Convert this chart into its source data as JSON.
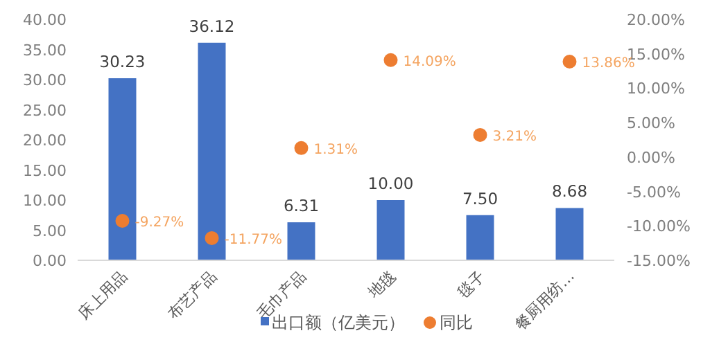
{
  "chart_data": {
    "type": "bar",
    "categories": [
      "床上用品",
      "布艺产品",
      "毛巾产品",
      "地毯",
      "毯子",
      "餐厨用纺…"
    ],
    "series": [
      {
        "name": "出口额（亿美元）",
        "color": "#4472c4",
        "values": [
          30.23,
          36.12,
          6.31,
          10.0,
          7.5,
          8.68
        ],
        "value_labels": [
          "30.23",
          "36.12",
          "6.31",
          "10.00",
          "7.50",
          "8.68"
        ]
      },
      {
        "name": "同比",
        "type": "scatter",
        "axis": "y2",
        "color": "#ed7d31",
        "marker": "circle",
        "values": [
          -9.27,
          -11.77,
          1.31,
          14.09,
          3.21,
          13.86
        ],
        "value_labels": [
          "-9.27%",
          "-11.77%",
          "1.31%",
          "14.09%",
          "3.21%",
          "13.86%"
        ]
      }
    ],
    "ylim": [
      0,
      40
    ],
    "yticks": [
      {
        "value": 0,
        "label": "0.00"
      },
      {
        "value": 5,
        "label": "5.00"
      },
      {
        "value": 10,
        "label": "10.00"
      },
      {
        "value": 15,
        "label": "15.00"
      },
      {
        "value": 20,
        "label": "20.00"
      },
      {
        "value": 25,
        "label": "25.00"
      },
      {
        "value": 30,
        "label": "30.00"
      },
      {
        "value": 35,
        "label": "35.00"
      },
      {
        "value": 40,
        "label": "40.00"
      }
    ],
    "y2lim": [
      -15,
      20
    ],
    "y2ticks": [
      {
        "value": -15,
        "label": "-15.00%"
      },
      {
        "value": -10,
        "label": "-10.00%"
      },
      {
        "value": -5,
        "label": "-5.00%"
      },
      {
        "value": 0,
        "label": "0.00%"
      },
      {
        "value": 5,
        "label": "5.00%"
      },
      {
        "value": 10,
        "label": "10.00%"
      },
      {
        "value": 15,
        "label": "15.00%"
      },
      {
        "value": 20,
        "label": "20.00%"
      }
    ],
    "grid": false,
    "legend": "bottom"
  }
}
